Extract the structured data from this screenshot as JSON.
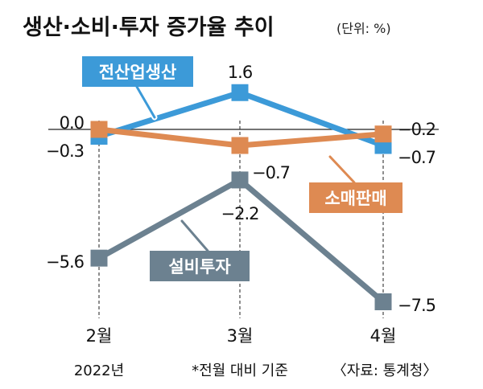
{
  "title": "생산·소비·투자 증가율 추이",
  "unit": "(단위: %)",
  "footnote": "*전월 대비 기준",
  "source": "〈자료: 통계청〉",
  "colors": {
    "industrial_production": "#3c9ad8",
    "retail_sales": "#de8a52",
    "facility_investment": "#6c8190",
    "background": "#ffffff"
  },
  "chart_data": {
    "type": "line",
    "title": "생산·소비·투자 증가율 추이",
    "unit": "(단위: %)",
    "x": [
      "2월",
      "3월",
      "4월"
    ],
    "x_sublabels": [
      "2022년",
      "",
      ""
    ],
    "ylim": [
      -8,
      2
    ],
    "grid": false,
    "series": [
      {
        "name": "전산업생산",
        "values": [
          -0.3,
          1.6,
          -0.7
        ],
        "labels": [
          "-0.3",
          "1.6",
          "-0.7"
        ]
      },
      {
        "name": "소매판매",
        "values": [
          0.0,
          -0.7,
          -0.2
        ],
        "labels": [
          "0.0",
          "-0.7",
          "-0.2"
        ]
      },
      {
        "name": "설비투자",
        "values": [
          -5.6,
          -2.2,
          -7.5
        ],
        "labels": [
          "-5.6",
          "-2.2",
          "-7.5"
        ]
      }
    ]
  }
}
